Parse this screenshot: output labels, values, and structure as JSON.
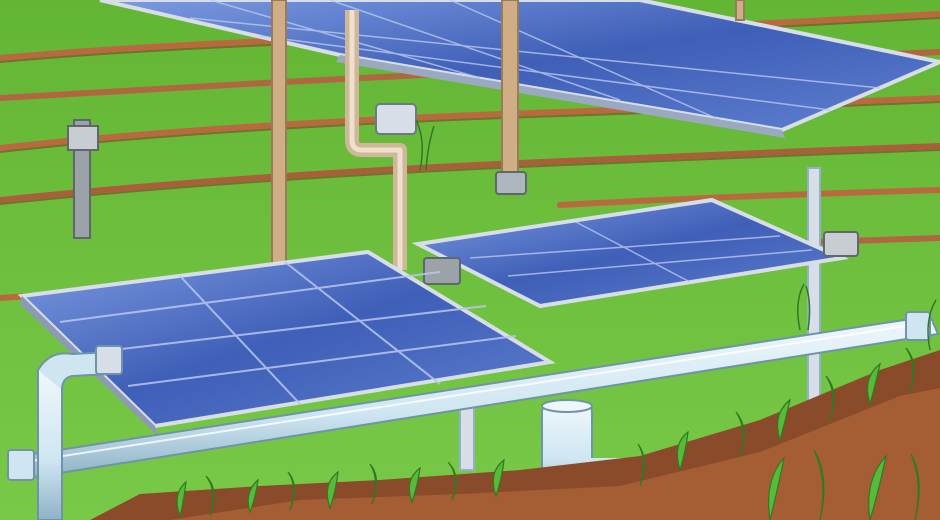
{
  "image": {
    "kind": "illustration",
    "palette": {
      "grass": "#6cbf3c",
      "grass_dark": "#4f9a2a",
      "soil": "#b86a3e",
      "soil_dark": "#7a4326",
      "panel": "#3f5fb8",
      "panel_light": "#7d9be0",
      "panel_frame": "#d8dee8",
      "pipe": "#cfe6f2",
      "pipe_shadow": "#8fb2c6",
      "post": "#cfae86",
      "post_shadow": "#9a7a58",
      "plant": "#58b93a",
      "plant_dark": "#2f7a22"
    },
    "objects": [
      "solar-panel-back",
      "solar-panel-left",
      "solar-panel-right",
      "irrigation-pipe",
      "water-valve",
      "support-post",
      "soil-furrow",
      "crop-seedling"
    ]
  }
}
